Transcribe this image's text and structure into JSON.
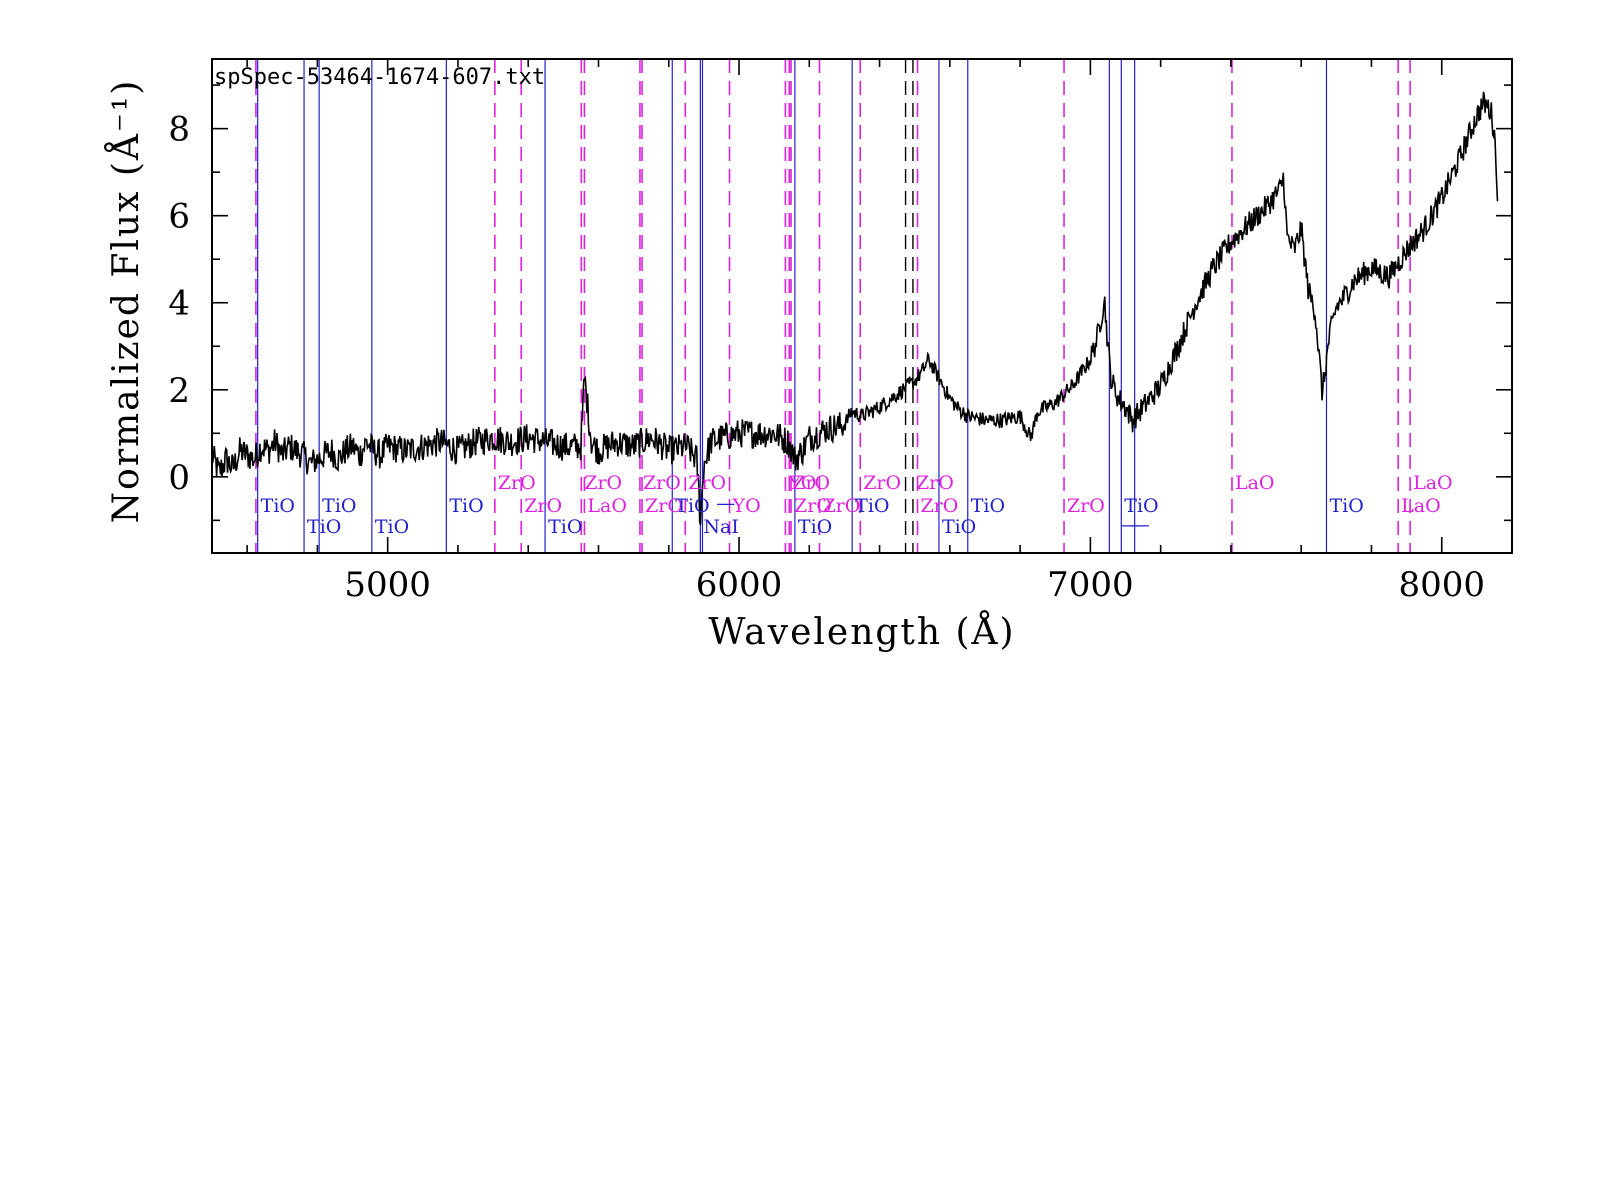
{
  "chart_data": {
    "type": "line",
    "title": "spSpec-53464-1674-607.txt",
    "xlabel": "Wavelength (Å)",
    "ylabel": "Normalized Flux  (Å⁻¹)",
    "xlim": [
      4500,
      8200
    ],
    "ylim": [
      -1.75,
      9.6
    ],
    "xticks": [
      5000,
      6000,
      7000,
      8000
    ],
    "xtick_labels": [
      "5000",
      "6000",
      "7000",
      "8000"
    ],
    "yticks": [
      0,
      2,
      4,
      6,
      8
    ],
    "ytick_labels": [
      "0",
      "2",
      "4",
      "6",
      "8"
    ],
    "grid": false,
    "colors": {
      "spectrum": "#000000",
      "tio": "#2222cc",
      "zro": "#dd22dd",
      "nai": "#2222cc",
      "black_marker": "#000000"
    },
    "series": [
      {
        "x": [
          4500,
          4520,
          4540,
          4560,
          4580,
          4600,
          4620,
          4640,
          4660,
          4680,
          4700,
          4720,
          4740,
          4760,
          4780,
          4800,
          4820,
          4840,
          4860,
          4880,
          4900,
          4920,
          4940,
          4960,
          4980,
          5000,
          5050,
          5100,
          5150,
          5200,
          5250,
          5300,
          5350,
          5400,
          5450,
          5500,
          5550,
          5560,
          5580,
          5600,
          5650,
          5700,
          5750,
          5800,
          5850,
          5880,
          5890,
          5900,
          5920,
          5950,
          6000,
          6050,
          6100,
          6140,
          6160,
          6180,
          6200,
          6250,
          6300,
          6320,
          6350,
          6400,
          6450,
          6500,
          6520,
          6540,
          6560,
          6580,
          6600,
          6620,
          6650,
          6700,
          6750,
          6800,
          6830,
          6850,
          6900,
          6950,
          7000,
          7020,
          7040,
          7050,
          7060,
          7080,
          7100,
          7120,
          7150,
          7200,
          7250,
          7300,
          7350,
          7400,
          7450,
          7500,
          7540,
          7550,
          7560,
          7580,
          7600,
          7620,
          7640,
          7660,
          7680,
          7700,
          7720,
          7750,
          7800,
          7850,
          7900,
          7950,
          8000,
          8050,
          8100,
          8120,
          8140,
          8150,
          8160
        ],
        "y": [
          0.5,
          0.1,
          0.4,
          0.2,
          0.6,
          0.5,
          0.4,
          0.7,
          0.6,
          0.8,
          0.5,
          0.7,
          0.6,
          0.5,
          0.3,
          0.4,
          0.5,
          0.6,
          0.4,
          0.6,
          0.7,
          0.5,
          0.8,
          0.6,
          0.5,
          0.7,
          0.6,
          0.7,
          0.8,
          0.6,
          0.8,
          0.9,
          0.8,
          0.9,
          0.8,
          0.7,
          0.7,
          2.3,
          0.8,
          0.6,
          0.8,
          0.7,
          0.9,
          0.6,
          0.7,
          0.4,
          -1.0,
          0.3,
          0.8,
          0.9,
          1.0,
          1.0,
          1.0,
          0.8,
          0.4,
          0.6,
          0.9,
          1.1,
          1.2,
          1.5,
          1.4,
          1.6,
          1.9,
          2.2,
          2.4,
          2.7,
          2.4,
          2.1,
          1.8,
          1.6,
          1.4,
          1.3,
          1.3,
          1.4,
          0.9,
          1.5,
          1.7,
          2.1,
          2.7,
          3.2,
          4.1,
          3.0,
          2.2,
          1.8,
          1.6,
          1.3,
          1.6,
          2.1,
          3.0,
          4.0,
          4.8,
          5.4,
          5.8,
          6.2,
          6.6,
          6.9,
          5.5,
          5.2,
          5.7,
          4.3,
          3.8,
          1.9,
          3.2,
          3.9,
          4.1,
          4.5,
          4.8,
          4.6,
          5.2,
          5.7,
          6.4,
          7.3,
          8.3,
          8.6,
          8.4,
          7.9,
          6.4
        ]
      }
    ],
    "line_markers": [
      {
        "x": 4630,
        "species": "TiO",
        "style": "solid",
        "label": "TiO",
        "label_row": 1
      },
      {
        "x": 4625,
        "species": "ZrO",
        "style": "dashed",
        "label": "",
        "label_row": 0
      },
      {
        "x": 4762,
        "species": "TiO",
        "style": "solid",
        "label": "TiO",
        "label_row": 2
      },
      {
        "x": 4805,
        "species": "TiO",
        "style": "solid",
        "label": "TiO",
        "label_row": 1
      },
      {
        "x": 4955,
        "species": "TiO",
        "style": "solid",
        "label": "TiO",
        "label_row": 2
      },
      {
        "x": 5167,
        "species": "TiO",
        "style": "solid",
        "label": "TiO",
        "label_row": 1
      },
      {
        "x": 5305,
        "species": "ZrO",
        "style": "dashed",
        "label": "ZrO",
        "label_row": 0
      },
      {
        "x": 5380,
        "species": "ZrO",
        "style": "dashed",
        "label": "ZrO",
        "label_row": 1
      },
      {
        "x": 5448,
        "species": "TiO",
        "style": "solid",
        "label": "TiO",
        "label_row": 2
      },
      {
        "x": 5551,
        "species": "ZrO",
        "style": "dashed",
        "label": "ZrO",
        "label_row": 0
      },
      {
        "x": 5560,
        "species": "ZrO",
        "style": "dashed",
        "label": "LaO",
        "label_row": 1
      },
      {
        "x": 5718,
        "species": "ZrO",
        "style": "dashed",
        "label": "ZrO",
        "label_row": 0
      },
      {
        "x": 5724,
        "species": "ZrO",
        "style": "dashed",
        "label": "ZrO",
        "label_row": 1
      },
      {
        "x": 5810,
        "species": "TiO",
        "style": "solid",
        "label": "TiO",
        "label_row": 1
      },
      {
        "x": 5847,
        "species": "ZrO",
        "style": "dashed",
        "label": "ZrO",
        "label_row": 0
      },
      {
        "x": 5890,
        "species": "NaI",
        "style": "solid",
        "label": "NaI",
        "label_row": 2
      },
      {
        "x": 5896,
        "species": "NaI",
        "style": "solid",
        "label": "",
        "label_row": 0
      },
      {
        "x": 5973,
        "species": "ZrO",
        "style": "dashed",
        "label": "YO",
        "label_row": 1
      },
      {
        "x": 6132,
        "species": "ZrO",
        "style": "dashed",
        "label": "YO",
        "label_row": 0
      },
      {
        "x": 6143,
        "species": "ZrO",
        "style": "dashed",
        "label": "ZrO",
        "label_row": 0
      },
      {
        "x": 6148,
        "species": "ZrO",
        "style": "dashed",
        "label": "ZrO",
        "label_row": 1
      },
      {
        "x": 6159,
        "species": "TiO",
        "style": "solid",
        "label": "TiO",
        "label_row": 2
      },
      {
        "x": 6229,
        "species": "ZrO",
        "style": "dashed",
        "label": "ZrO",
        "label_row": 1
      },
      {
        "x": 6322,
        "species": "TiO",
        "style": "solid",
        "label": "TiO",
        "label_row": 1
      },
      {
        "x": 6345,
        "species": "ZrO",
        "style": "dashed",
        "label": "ZrO",
        "label_row": 0
      },
      {
        "x": 6474,
        "species": "Other",
        "style": "dashed_black",
        "label": "",
        "label_row": 0
      },
      {
        "x": 6495,
        "species": "ZrO",
        "style": "dashed_black",
        "label": "ZrO",
        "label_row": 0
      },
      {
        "x": 6508,
        "species": "ZrO",
        "style": "dashed",
        "label": "ZrO",
        "label_row": 1
      },
      {
        "x": 6569,
        "species": "TiO",
        "style": "solid",
        "label": "TiO",
        "label_row": 2
      },
      {
        "x": 6651,
        "species": "TiO",
        "style": "solid",
        "label": "TiO",
        "label_row": 1
      },
      {
        "x": 6925,
        "species": "ZrO",
        "style": "dashed",
        "label": "ZrO",
        "label_row": 1
      },
      {
        "x": 7054,
        "species": "TiO",
        "style": "solid",
        "label": "",
        "label_row": 0
      },
      {
        "x": 7088,
        "species": "TiO",
        "style": "solid",
        "label": "TiO",
        "label_row": 1
      },
      {
        "x": 7126,
        "species": "TiO",
        "style": "solid",
        "label": "",
        "label_row": 0
      },
      {
        "x": 7403,
        "species": "ZrO",
        "style": "dashed",
        "label": "LaO",
        "label_row": 0
      },
      {
        "x": 7672,
        "species": "TiO",
        "style": "solid",
        "label": "TiO",
        "label_row": 1
      },
      {
        "x": 7876,
        "species": "ZrO",
        "style": "dashed",
        "label": "LaO",
        "label_row": 1
      },
      {
        "x": 7910,
        "species": "ZrO",
        "style": "dashed",
        "label": "LaO",
        "label_row": 0
      }
    ],
    "extra_marks": [
      {
        "x": 5935,
        "y": -0.75,
        "text": "—",
        "species": "TiO"
      },
      {
        "x": 7085,
        "y": -1.25,
        "text": "—",
        "species": "TiO"
      },
      {
        "x": 7115,
        "y": -1.25,
        "text": "—",
        "species": "TiO"
      }
    ]
  }
}
